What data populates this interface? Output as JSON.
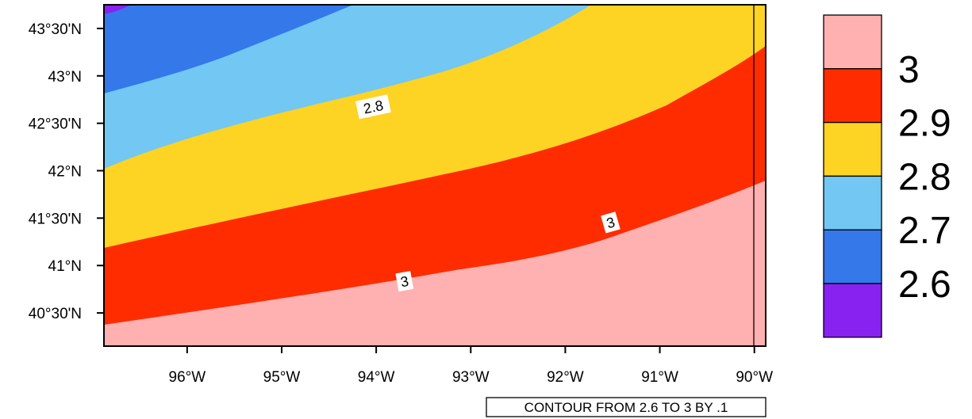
{
  "map": {
    "lat_ticks": [
      {
        "label": "43°30'N",
        "value": 43.5
      },
      {
        "label": "43°N",
        "value": 43.0
      },
      {
        "label": "42°30'N",
        "value": 42.5
      },
      {
        "label": "42°N",
        "value": 42.0
      },
      {
        "label": "41°30'N",
        "value": 41.5
      },
      {
        "label": "41°N",
        "value": 41.0
      },
      {
        "label": "40°30'N",
        "value": 40.5
      }
    ],
    "lon_ticks": [
      {
        "label": "96°W",
        "value": -96
      },
      {
        "label": "95°W",
        "value": -95
      },
      {
        "label": "94°W",
        "value": -94
      },
      {
        "label": "93°W",
        "value": -93
      },
      {
        "label": "92°W",
        "value": -92
      },
      {
        "label": "91°W",
        "value": -91
      },
      {
        "label": "90°W",
        "value": -90
      }
    ],
    "extent": {
      "lon_min": -96.88,
      "lon_max": -89.88,
      "lat_min": 40.15,
      "lat_max": 43.75
    },
    "fill_colors": {
      "below_2.6": "#8722f0",
      "2.6_2.7": "#3478ea",
      "2.7_2.8": "#72c7f3",
      "2.8_2.9": "#fdd324",
      "2.9_3": "#ff2c00",
      "above_3": "#ffb0b0"
    },
    "contour_labels": [
      {
        "text": "2.8",
        "lon": -94.03,
        "lat": 42.67
      },
      {
        "text": "3",
        "lon": -91.52,
        "lat": 41.45
      },
      {
        "text": "3",
        "lon": -93.7,
        "lat": 40.83
      }
    ],
    "footer": "CONTOUR FROM 2.6 TO 3 BY .1"
  },
  "legend": {
    "labels": [
      "3",
      "2.9",
      "2.8",
      "2.7",
      "2.6"
    ],
    "colors": [
      "#ffb0b0",
      "#ff2c00",
      "#fdd324",
      "#72c7f3",
      "#3478ea",
      "#8722f0"
    ]
  }
}
